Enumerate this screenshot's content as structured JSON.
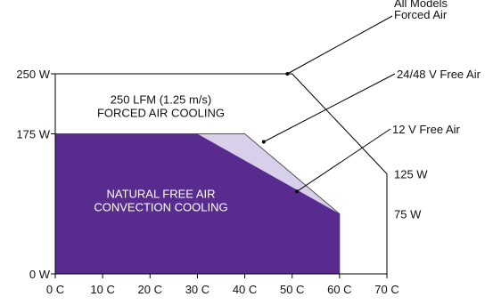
{
  "chart_data": {
    "type": "area",
    "title": "",
    "xlabel": "",
    "ylabel": "",
    "xlim": [
      0,
      70
    ],
    "ylim": [
      0,
      250
    ],
    "x_ticks": [
      "0 C",
      "10 C",
      "20 C",
      "30 C",
      "40 C",
      "50 C",
      "60 C",
      "70 C"
    ],
    "y_ticks": [
      {
        "value": 0,
        "label": "0 W"
      },
      {
        "value": 175,
        "label": "175 W"
      },
      {
        "value": 250,
        "label": "250 W"
      }
    ],
    "region_labels": {
      "forced": "250 LFM (1.25 m/s)\nFORCED AIR COOLING",
      "natural": "NATURAL FREE AIR\nCONVECTION COOLING"
    },
    "series": [
      {
        "name": "All Models Forced Air",
        "points": [
          [
            0,
            250
          ],
          [
            50,
            250
          ],
          [
            70,
            125
          ]
        ],
        "color": "#000000",
        "end_label": "125 W"
      },
      {
        "name": "24/48 V Free Air",
        "points": [
          [
            0,
            175
          ],
          [
            40,
            175
          ],
          [
            60,
            75
          ]
        ],
        "color": "#d8d0ea"
      },
      {
        "name": "12 V Free Air",
        "points": [
          [
            0,
            175
          ],
          [
            30,
            175
          ],
          [
            60,
            75
          ]
        ],
        "color": "#582c8e",
        "end_label": "75 W"
      }
    ],
    "annotations": [
      {
        "text": "All Models\nForced Air",
        "target": [
          49,
          250
        ]
      },
      {
        "text": "24/48 V Free Air",
        "target": [
          44,
          165
        ]
      },
      {
        "text": "12 V Free Air",
        "target": [
          51,
          103
        ]
      }
    ]
  }
}
